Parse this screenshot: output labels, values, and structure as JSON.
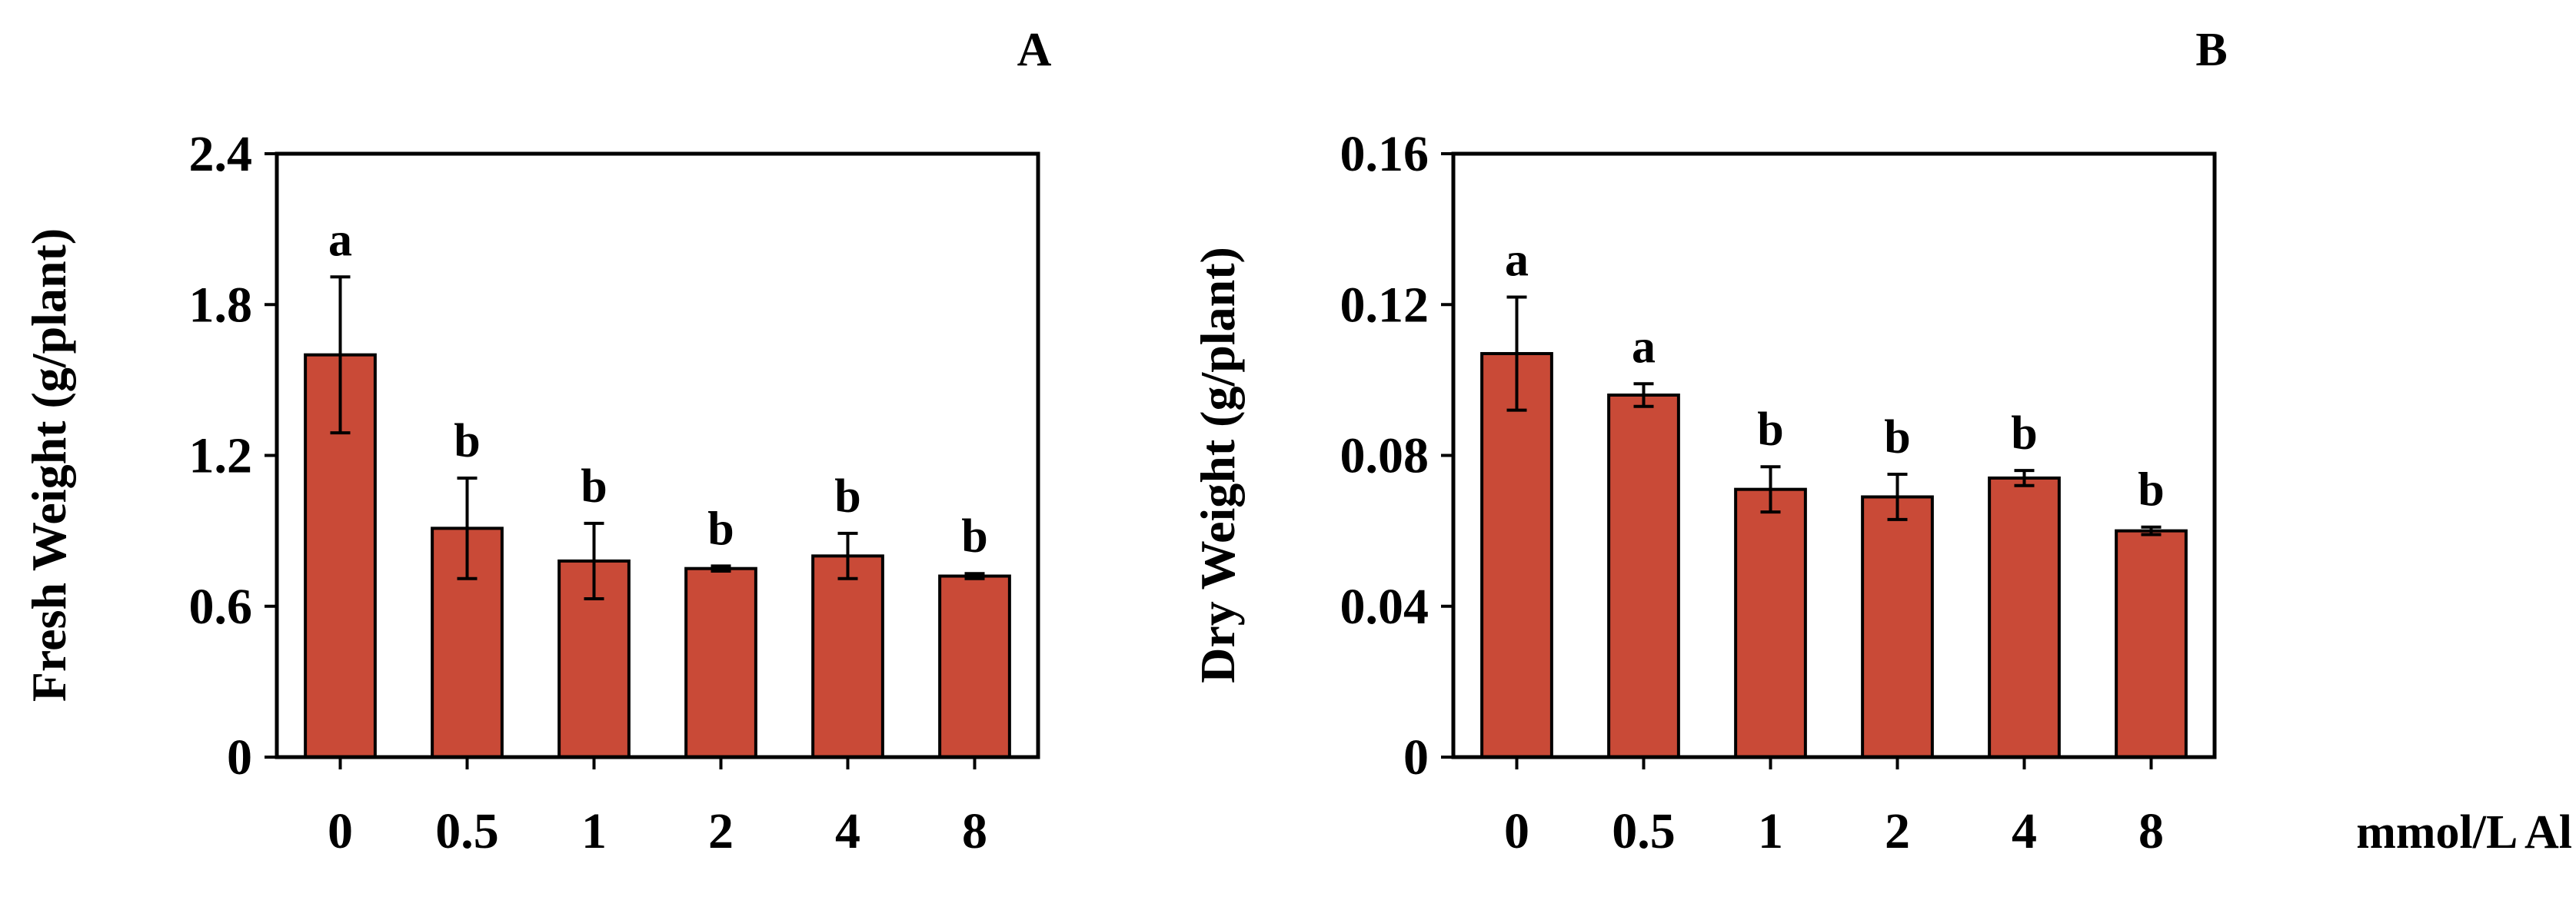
{
  "bar_color": "#C94A37",
  "x_unit_label": "mmol/L Al",
  "chart_data": [
    {
      "type": "bar",
      "panel_label": "A",
      "ylabel": "Fresh Weight (g/plant)",
      "xlabel": "mmol/L Al",
      "categories": [
        "0",
        "0.5",
        "1",
        "2",
        "4",
        "8"
      ],
      "values": [
        1.6,
        0.91,
        0.78,
        0.75,
        0.8,
        0.72
      ],
      "errors": [
        0.31,
        0.2,
        0.15,
        0.01,
        0.09,
        0.01
      ],
      "significance": [
        "a",
        "b",
        "b",
        "b",
        "b",
        "b"
      ],
      "ylim": [
        0,
        2.4
      ],
      "yticks": [
        "0",
        "0.6",
        "1.2",
        "1.8",
        "2.4"
      ],
      "ytick_values": [
        0,
        0.6,
        1.2,
        1.8,
        2.4
      ]
    },
    {
      "type": "bar",
      "panel_label": "B",
      "ylabel": "Dry Weight (g/plant)",
      "xlabel": "mmol/L Al",
      "categories": [
        "0",
        "0.5",
        "1",
        "2",
        "4",
        "8"
      ],
      "values": [
        0.107,
        0.096,
        0.071,
        0.069,
        0.074,
        0.06
      ],
      "errors": [
        0.015,
        0.003,
        0.006,
        0.006,
        0.002,
        0.001
      ],
      "significance": [
        "a",
        "a",
        "b",
        "b",
        "b",
        "b"
      ],
      "ylim": [
        0,
        0.16
      ],
      "yticks": [
        "0",
        "0.04",
        "0.08",
        "0.12",
        "0.16"
      ],
      "ytick_values": [
        0,
        0.04,
        0.08,
        0.12,
        0.16
      ]
    }
  ]
}
